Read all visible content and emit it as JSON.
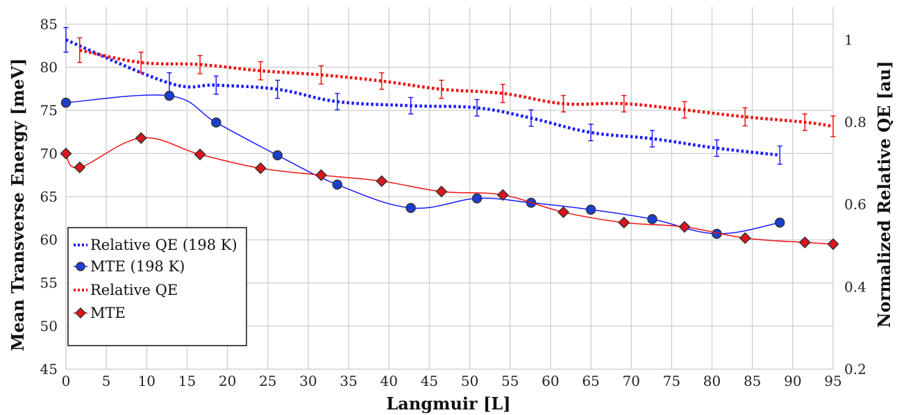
{
  "chart_data": {
    "type": "line",
    "xlabel": "Langmuir [L]",
    "ylabel": "Mean Transverse Energy [meV]",
    "y2label": "Normalized Relative QE [au]",
    "xlim": [
      0,
      95
    ],
    "ylim": [
      45,
      87
    ],
    "y2lim": [
      0.2,
      1.08
    ],
    "xticks": [
      "0",
      "5",
      "10",
      "15",
      "20",
      "25",
      "30",
      "35",
      "40",
      "45",
      "50",
      "55",
      "60",
      "65",
      "70",
      "75",
      "80",
      "85",
      "90",
      "95"
    ],
    "yticks": [
      "45",
      "50",
      "55",
      "60",
      "65",
      "70",
      "75",
      "80",
      "85"
    ],
    "y2ticks": [
      "0.2",
      "0.4",
      "0.6",
      "0.8",
      "1"
    ],
    "grid": true,
    "legend_position": "bottom-left",
    "series": [
      {
        "name": "Relative QE (198 K)",
        "axis": "right",
        "style": "dotted",
        "color": "#1a1aff",
        "x": [
          0,
          12.8,
          18.6,
          26.2,
          33.6,
          42.7,
          50.9,
          57.6,
          65.0,
          72.6,
          80.6,
          88.4
        ],
        "y": [
          1.0,
          0.895,
          0.89,
          0.88,
          0.85,
          0.84,
          0.835,
          0.81,
          0.775,
          0.76,
          0.737,
          0.72
        ],
        "err": [
          0.03,
          0.025,
          0.022,
          0.022,
          0.02,
          0.02,
          0.02,
          0.02,
          0.02,
          0.02,
          0.02,
          0.022
        ]
      },
      {
        "name": "MTE (198 K)",
        "axis": "left",
        "style": "circle",
        "color": "#1a1aff",
        "marker_fill": "#1a3fcf",
        "x": [
          0,
          12.8,
          18.6,
          26.2,
          33.6,
          42.7,
          50.9,
          57.6,
          65.0,
          72.6,
          80.6,
          88.4
        ],
        "y": [
          75.9,
          76.7,
          73.6,
          69.8,
          66.4,
          63.7,
          64.8,
          64.3,
          63.5,
          62.4,
          60.7,
          62.0
        ]
      },
      {
        "name": "Relative QE",
        "axis": "right",
        "style": "dotted",
        "color": "#ee1111",
        "x": [
          1.7,
          9.3,
          16.6,
          24.1,
          31.6,
          39.1,
          46.5,
          54.1,
          61.6,
          69.1,
          76.6,
          84.1,
          91.5,
          95
        ],
        "y": [
          0.975,
          0.945,
          0.94,
          0.925,
          0.915,
          0.9,
          0.88,
          0.87,
          0.845,
          0.845,
          0.83,
          0.813,
          0.8,
          0.79
        ],
        "err": [
          0.03,
          0.025,
          0.022,
          0.022,
          0.022,
          0.02,
          0.022,
          0.022,
          0.02,
          0.02,
          0.02,
          0.022,
          0.02,
          0.025
        ]
      },
      {
        "name": "MTE",
        "axis": "left",
        "style": "diamond",
        "color": "#ee1111",
        "marker_fill": "#e0141e",
        "x": [
          0,
          1.7,
          9.3,
          16.6,
          24.1,
          31.6,
          39.1,
          46.5,
          54.1,
          61.6,
          69.1,
          76.6,
          84.1,
          91.5,
          95
        ],
        "y": [
          70.0,
          68.4,
          71.8,
          69.9,
          68.3,
          67.5,
          66.8,
          65.6,
          65.2,
          63.2,
          62.0,
          61.5,
          60.2,
          59.7,
          59.5
        ]
      }
    ]
  }
}
